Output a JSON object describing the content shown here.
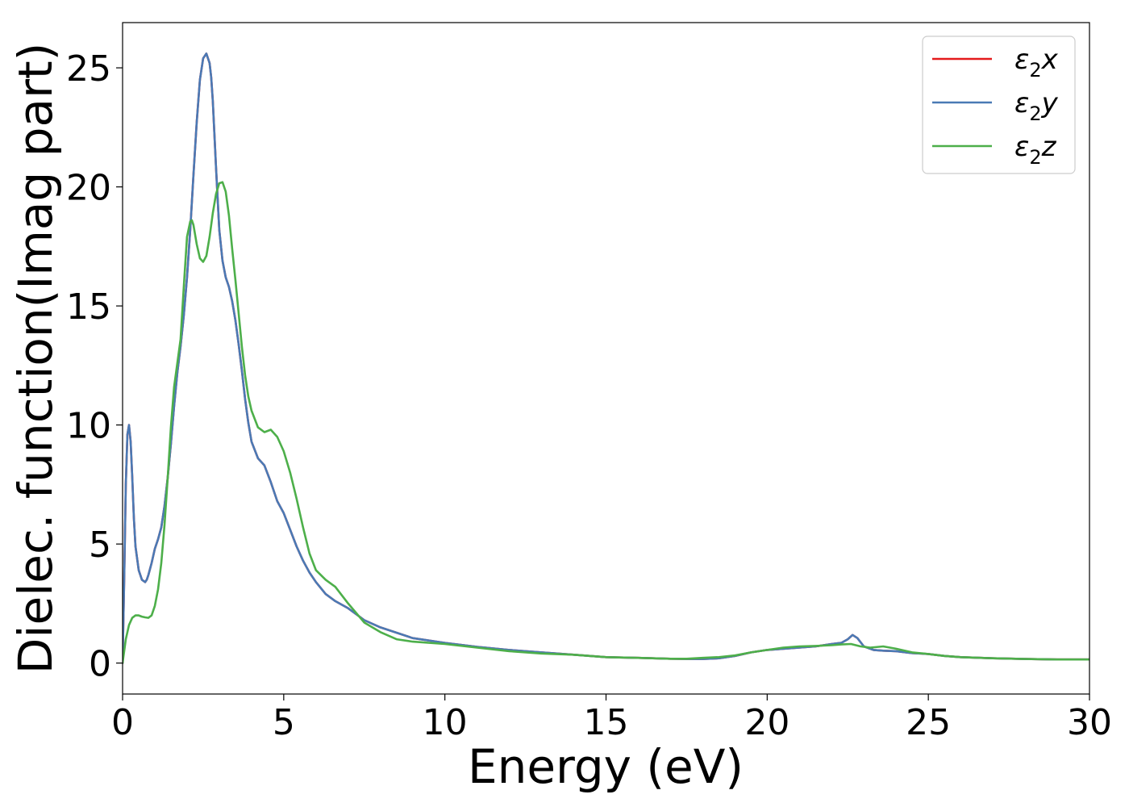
{
  "chart_data": {
    "type": "line",
    "xlabel": "Energy (eV)",
    "ylabel": "Dielec. function(Imag part)",
    "xlim": [
      0,
      30
    ],
    "ylim": [
      -1.3,
      26.9
    ],
    "xticks": [
      0,
      5,
      10,
      15,
      20,
      25,
      30
    ],
    "yticks": [
      0,
      5,
      10,
      15,
      20,
      25
    ],
    "grid": false,
    "legend_position": "top-right",
    "series": [
      {
        "name": "ε2x",
        "legend_base": "ε",
        "legend_sub": "2",
        "legend_suffix": "x",
        "color": "#e41a1c",
        "x": [
          0,
          0.05,
          0.1,
          0.15,
          0.2,
          0.25,
          0.3,
          0.35,
          0.4,
          0.5,
          0.6,
          0.7,
          0.75,
          0.8,
          0.9,
          1.0,
          1.1,
          1.2,
          1.3,
          1.4,
          1.5,
          1.6,
          1.7,
          1.8,
          1.9,
          2.0,
          2.1,
          2.2,
          2.3,
          2.4,
          2.5,
          2.6,
          2.7,
          2.75,
          2.8,
          2.9,
          3.0,
          3.1,
          3.2,
          3.3,
          3.4,
          3.5,
          3.6,
          3.7,
          3.8,
          3.9,
          4.0,
          4.2,
          4.4,
          4.6,
          4.8,
          5.0,
          5.2,
          5.4,
          5.6,
          5.8,
          6.0,
          6.3,
          6.6,
          7.0,
          7.5,
          8.0,
          9.0,
          10.0,
          11.0,
          12.0,
          13.0,
          14.0,
          15.0,
          16.0,
          17.0,
          17.5,
          18.0,
          18.5,
          19.0,
          19.5,
          20.0,
          20.5,
          21.0,
          21.5,
          22.0,
          22.3,
          22.5,
          22.65,
          22.8,
          23.0,
          23.3,
          23.6,
          24.0,
          24.5,
          25.0,
          25.5,
          26.0,
          27.0,
          28.0,
          29.0,
          30.0
        ],
        "y": [
          0,
          3.5,
          7.5,
          9.6,
          10.0,
          9.3,
          7.8,
          6.1,
          4.9,
          3.9,
          3.5,
          3.4,
          3.5,
          3.7,
          4.2,
          4.8,
          5.2,
          5.7,
          6.6,
          7.8,
          9.2,
          10.8,
          12.2,
          13.3,
          14.6,
          16.2,
          18.2,
          20.5,
          22.7,
          24.5,
          25.4,
          25.6,
          25.2,
          24.6,
          23.6,
          20.8,
          18.2,
          16.9,
          16.2,
          15.8,
          15.2,
          14.4,
          13.4,
          12.3,
          11.1,
          10.1,
          9.3,
          8.6,
          8.3,
          7.6,
          6.8,
          6.3,
          5.6,
          4.9,
          4.3,
          3.8,
          3.4,
          2.9,
          2.6,
          2.3,
          1.8,
          1.5,
          1.05,
          0.85,
          0.68,
          0.55,
          0.45,
          0.35,
          0.25,
          0.22,
          0.18,
          0.17,
          0.17,
          0.2,
          0.3,
          0.45,
          0.55,
          0.6,
          0.65,
          0.7,
          0.8,
          0.85,
          1.0,
          1.18,
          1.05,
          0.7,
          0.55,
          0.52,
          0.5,
          0.42,
          0.38,
          0.3,
          0.25,
          0.2,
          0.17,
          0.15,
          0.15
        ]
      },
      {
        "name": "ε2y",
        "legend_base": "ε",
        "legend_sub": "2",
        "legend_suffix": "y",
        "color": "#4a7ab5",
        "x": [
          0,
          0.05,
          0.1,
          0.15,
          0.2,
          0.25,
          0.3,
          0.35,
          0.4,
          0.5,
          0.6,
          0.7,
          0.75,
          0.8,
          0.9,
          1.0,
          1.1,
          1.2,
          1.3,
          1.4,
          1.5,
          1.6,
          1.7,
          1.8,
          1.9,
          2.0,
          2.1,
          2.2,
          2.3,
          2.4,
          2.5,
          2.6,
          2.7,
          2.75,
          2.8,
          2.9,
          3.0,
          3.1,
          3.2,
          3.3,
          3.4,
          3.5,
          3.6,
          3.7,
          3.8,
          3.9,
          4.0,
          4.2,
          4.4,
          4.6,
          4.8,
          5.0,
          5.2,
          5.4,
          5.6,
          5.8,
          6.0,
          6.3,
          6.6,
          7.0,
          7.5,
          8.0,
          9.0,
          10.0,
          11.0,
          12.0,
          13.0,
          14.0,
          15.0,
          16.0,
          17.0,
          17.5,
          18.0,
          18.5,
          19.0,
          19.5,
          20.0,
          20.5,
          21.0,
          21.5,
          22.0,
          22.3,
          22.5,
          22.65,
          22.8,
          23.0,
          23.3,
          23.6,
          24.0,
          24.5,
          25.0,
          25.5,
          26.0,
          27.0,
          28.0,
          29.0,
          30.0
        ],
        "y": [
          0,
          3.5,
          7.5,
          9.6,
          10.0,
          9.3,
          7.8,
          6.1,
          4.9,
          3.9,
          3.5,
          3.4,
          3.5,
          3.7,
          4.2,
          4.8,
          5.2,
          5.7,
          6.6,
          7.8,
          9.2,
          10.8,
          12.2,
          13.3,
          14.6,
          16.2,
          18.2,
          20.5,
          22.7,
          24.5,
          25.4,
          25.6,
          25.2,
          24.6,
          23.6,
          20.8,
          18.2,
          16.9,
          16.2,
          15.8,
          15.2,
          14.4,
          13.4,
          12.3,
          11.1,
          10.1,
          9.3,
          8.6,
          8.3,
          7.6,
          6.8,
          6.3,
          5.6,
          4.9,
          4.3,
          3.8,
          3.4,
          2.9,
          2.6,
          2.3,
          1.8,
          1.5,
          1.05,
          0.85,
          0.68,
          0.55,
          0.45,
          0.35,
          0.25,
          0.22,
          0.18,
          0.17,
          0.17,
          0.2,
          0.3,
          0.45,
          0.55,
          0.6,
          0.65,
          0.7,
          0.8,
          0.85,
          1.0,
          1.18,
          1.05,
          0.7,
          0.55,
          0.52,
          0.5,
          0.42,
          0.38,
          0.3,
          0.25,
          0.2,
          0.17,
          0.15,
          0.15
        ]
      },
      {
        "name": "ε2z",
        "legend_base": "ε",
        "legend_sub": "2",
        "legend_suffix": "z",
        "color": "#4daf4a",
        "x": [
          0,
          0.1,
          0.2,
          0.3,
          0.4,
          0.5,
          0.6,
          0.7,
          0.8,
          0.9,
          1.0,
          1.1,
          1.2,
          1.3,
          1.4,
          1.5,
          1.6,
          1.7,
          1.8,
          1.9,
          2.0,
          2.1,
          2.15,
          2.2,
          2.3,
          2.4,
          2.5,
          2.6,
          2.7,
          2.8,
          2.9,
          3.0,
          3.1,
          3.2,
          3.3,
          3.4,
          3.5,
          3.6,
          3.7,
          3.8,
          3.9,
          4.0,
          4.2,
          4.4,
          4.6,
          4.8,
          5.0,
          5.2,
          5.4,
          5.6,
          5.8,
          6.0,
          6.3,
          6.6,
          7.0,
          7.5,
          8.0,
          8.5,
          9.0,
          10.0,
          11.0,
          12.0,
          13.0,
          14.0,
          15.0,
          16.0,
          17.0,
          17.5,
          18.0,
          18.5,
          19.0,
          19.5,
          20.0,
          20.5,
          21.0,
          21.5,
          22.0,
          22.3,
          22.6,
          22.9,
          23.2,
          23.6,
          24.0,
          24.5,
          25.0,
          25.5,
          26.0,
          27.0,
          28.0,
          29.0,
          30.0
        ],
        "y": [
          0,
          1.0,
          1.6,
          1.9,
          2.0,
          2.0,
          1.95,
          1.92,
          1.9,
          2.0,
          2.4,
          3.1,
          4.2,
          5.8,
          7.8,
          9.9,
          11.6,
          12.6,
          13.6,
          15.8,
          17.9,
          18.55,
          18.6,
          18.4,
          17.6,
          17.0,
          16.85,
          17.1,
          17.9,
          18.9,
          19.7,
          20.15,
          20.2,
          19.8,
          18.8,
          17.4,
          16.1,
          14.7,
          13.3,
          12.1,
          11.2,
          10.6,
          9.9,
          9.7,
          9.8,
          9.5,
          8.9,
          8.0,
          6.9,
          5.7,
          4.6,
          3.9,
          3.5,
          3.2,
          2.5,
          1.7,
          1.3,
          1.0,
          0.9,
          0.8,
          0.65,
          0.5,
          0.4,
          0.35,
          0.25,
          0.22,
          0.18,
          0.18,
          0.22,
          0.25,
          0.32,
          0.45,
          0.55,
          0.65,
          0.7,
          0.72,
          0.75,
          0.78,
          0.8,
          0.7,
          0.65,
          0.7,
          0.6,
          0.45,
          0.38,
          0.3,
          0.25,
          0.2,
          0.17,
          0.15,
          0.15
        ]
      }
    ]
  }
}
